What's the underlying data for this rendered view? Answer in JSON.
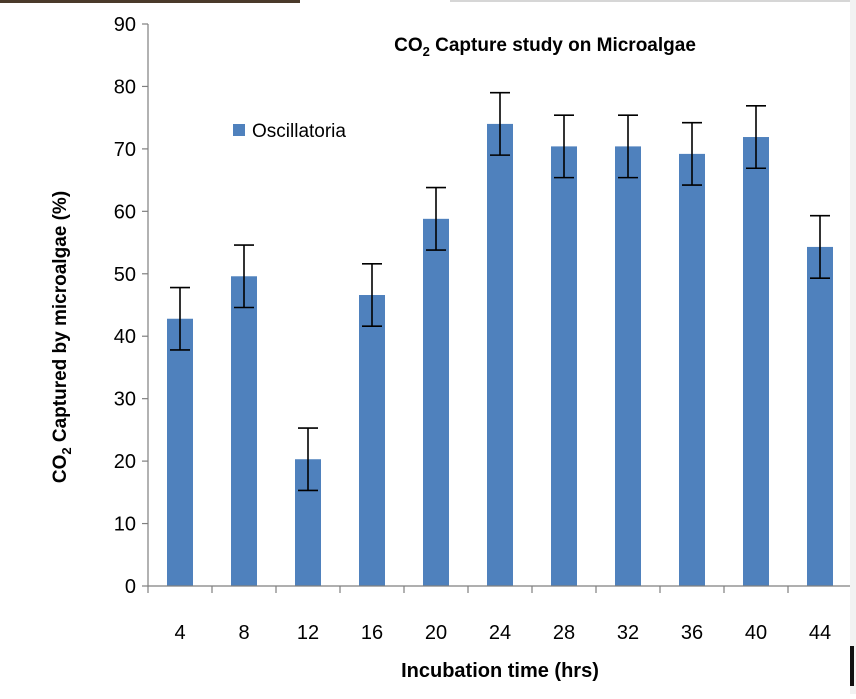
{
  "chart_data": {
    "type": "bar",
    "title_main": "CO",
    "title_sub": "2",
    "title_rest": " Capture study on Microalgae",
    "xlabel": "Incubation time  (hrs)",
    "ylabel_main": "CO",
    "ylabel_sub": "2",
    "ylabel_rest": " Captured by microalgae (%)",
    "ylim": [
      0,
      90
    ],
    "yticks": [
      "0",
      "10",
      "20",
      "30",
      "40",
      "50",
      "60",
      "70",
      "80",
      "90"
    ],
    "categories": [
      "4",
      "8",
      "12",
      "16",
      "20",
      "24",
      "28",
      "32",
      "36",
      "40",
      "44"
    ],
    "series": [
      {
        "name": "Oscillatoria",
        "color": "#4f81bd",
        "values": [
          42.8,
          49.6,
          20.3,
          46.6,
          58.8,
          74.0,
          70.4,
          70.4,
          69.2,
          71.9,
          54.3
        ],
        "error": [
          5,
          5,
          5,
          5,
          5,
          5,
          5,
          5,
          5,
          5,
          5
        ]
      }
    ],
    "legend_position": "top-left",
    "grid": false
  }
}
